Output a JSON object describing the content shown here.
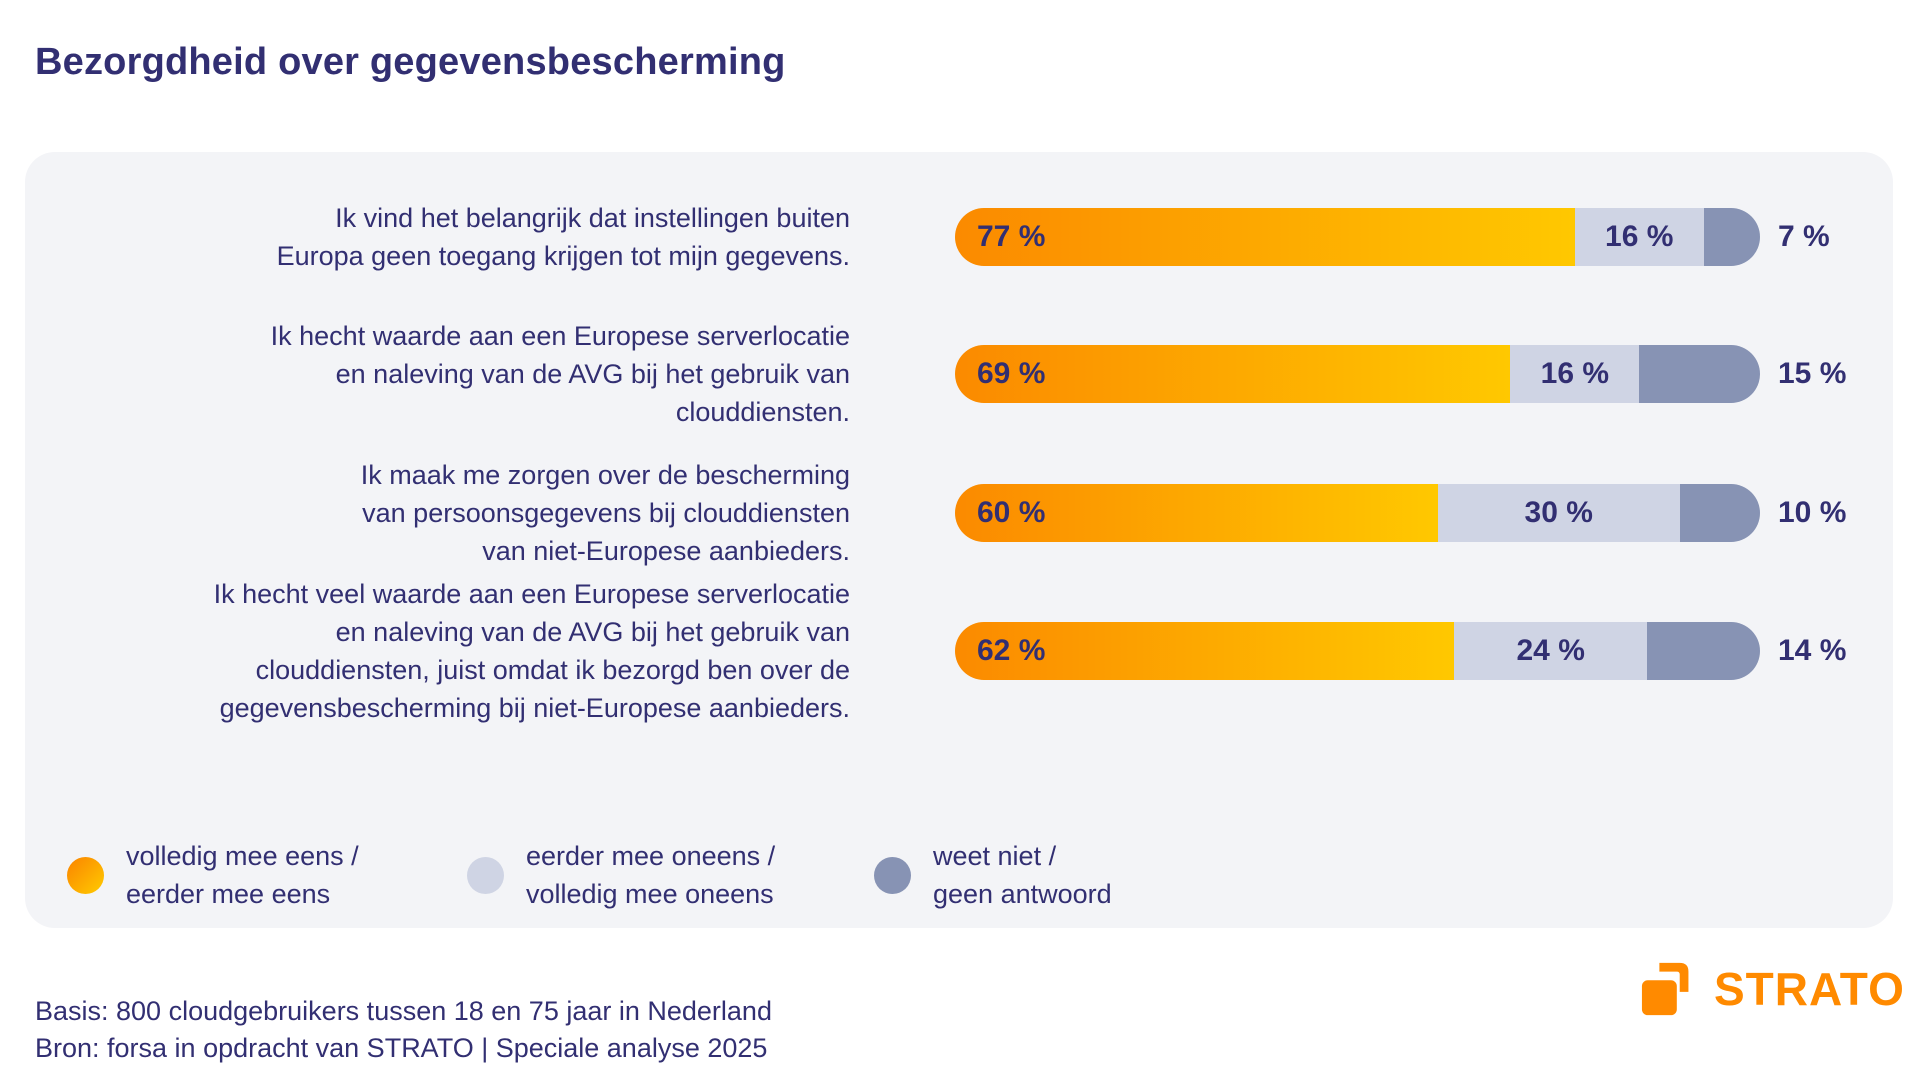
{
  "page": {
    "title": "Bezorgdheid over gegevensbescherming",
    "footer": {
      "line1": "Basis: 800 cloudgebruikers tussen 18 en 75 jaar in Nederland",
      "line2": "Bron: forsa in opdracht van STRATO | Speciale analyse 2025"
    },
    "brand": "STRATO"
  },
  "colors": {
    "title_text": "#322F72",
    "card_bg": "#F3F4F7",
    "orange_start": "#FB8A00",
    "orange_end": "#FFC800",
    "light_blue": "#CFD4E4",
    "slate": "#8793B4",
    "brand_orange": "#FF8A00"
  },
  "legend": {
    "items": [
      {
        "lines": [
          "volledig mee eens /",
          "eerder mee eens"
        ],
        "swatch": "orange-gradient"
      },
      {
        "lines": [
          "eerder mee oneens /",
          "volledig mee oneens"
        ],
        "swatch": "light-blue"
      },
      {
        "lines": [
          "weet niet /",
          "geen antwoord"
        ],
        "swatch": "slate"
      }
    ]
  },
  "chart_data": {
    "type": "bar",
    "orientation": "horizontal",
    "stacked": true,
    "title": "Bezorgdheid over gegevensbescherming",
    "unit": "%",
    "xlim": [
      0,
      100
    ],
    "value_suffix": " %",
    "categories": [
      "Ik vind het belangrijk dat instellingen buiten Europa geen toegang krijgen tot mijn gegevens.",
      "Ik hecht waarde aan een Europese serverlocatie en naleving van de AVG bij het gebruik van clouddiensten.",
      "Ik maak me zorgen over de bescherming van persoonsgegevens bij clouddiensten van niet-Europese aanbieders.",
      "Ik hecht veel waarde aan een Europese serverlocatie en naleving van de AVG bij het gebruik van clouddiensten, juist omdat ik bezorgd ben over de gegevensbescherming bij niet-Europese aanbieders."
    ],
    "categories_lines": [
      [
        "Ik vind het belangrijk dat instellingen buiten",
        "Europa geen toegang krijgen tot mijn gegevens."
      ],
      [
        "Ik hecht waarde aan een Europese serverlocatie",
        "en naleving van de AVG bij het gebruik van",
        "clouddiensten."
      ],
      [
        "Ik maak me zorgen over de bescherming",
        "van persoonsgegevens bij clouddiensten",
        "van niet-Europese aanbieders."
      ],
      [
        "Ik hecht veel waarde aan een Europese serverlocatie",
        "en naleving van de AVG bij het gebruik van",
        "clouddiensten, juist omdat ik bezorgd ben over de",
        "gegevensbescherming bij niet-Europese aanbieders."
      ]
    ],
    "series": [
      {
        "name": "volledig mee eens / eerder mee eens",
        "color_start": "#FB8A00",
        "color_end": "#FFC800",
        "values": [
          77,
          69,
          60,
          62
        ]
      },
      {
        "name": "eerder mee oneens / volledig mee oneens",
        "color": "#CFD4E4",
        "values": [
          16,
          16,
          30,
          24
        ]
      },
      {
        "name": "weet niet / geen antwoord",
        "color": "#8793B4",
        "values": [
          7,
          15,
          10,
          14
        ]
      }
    ]
  }
}
